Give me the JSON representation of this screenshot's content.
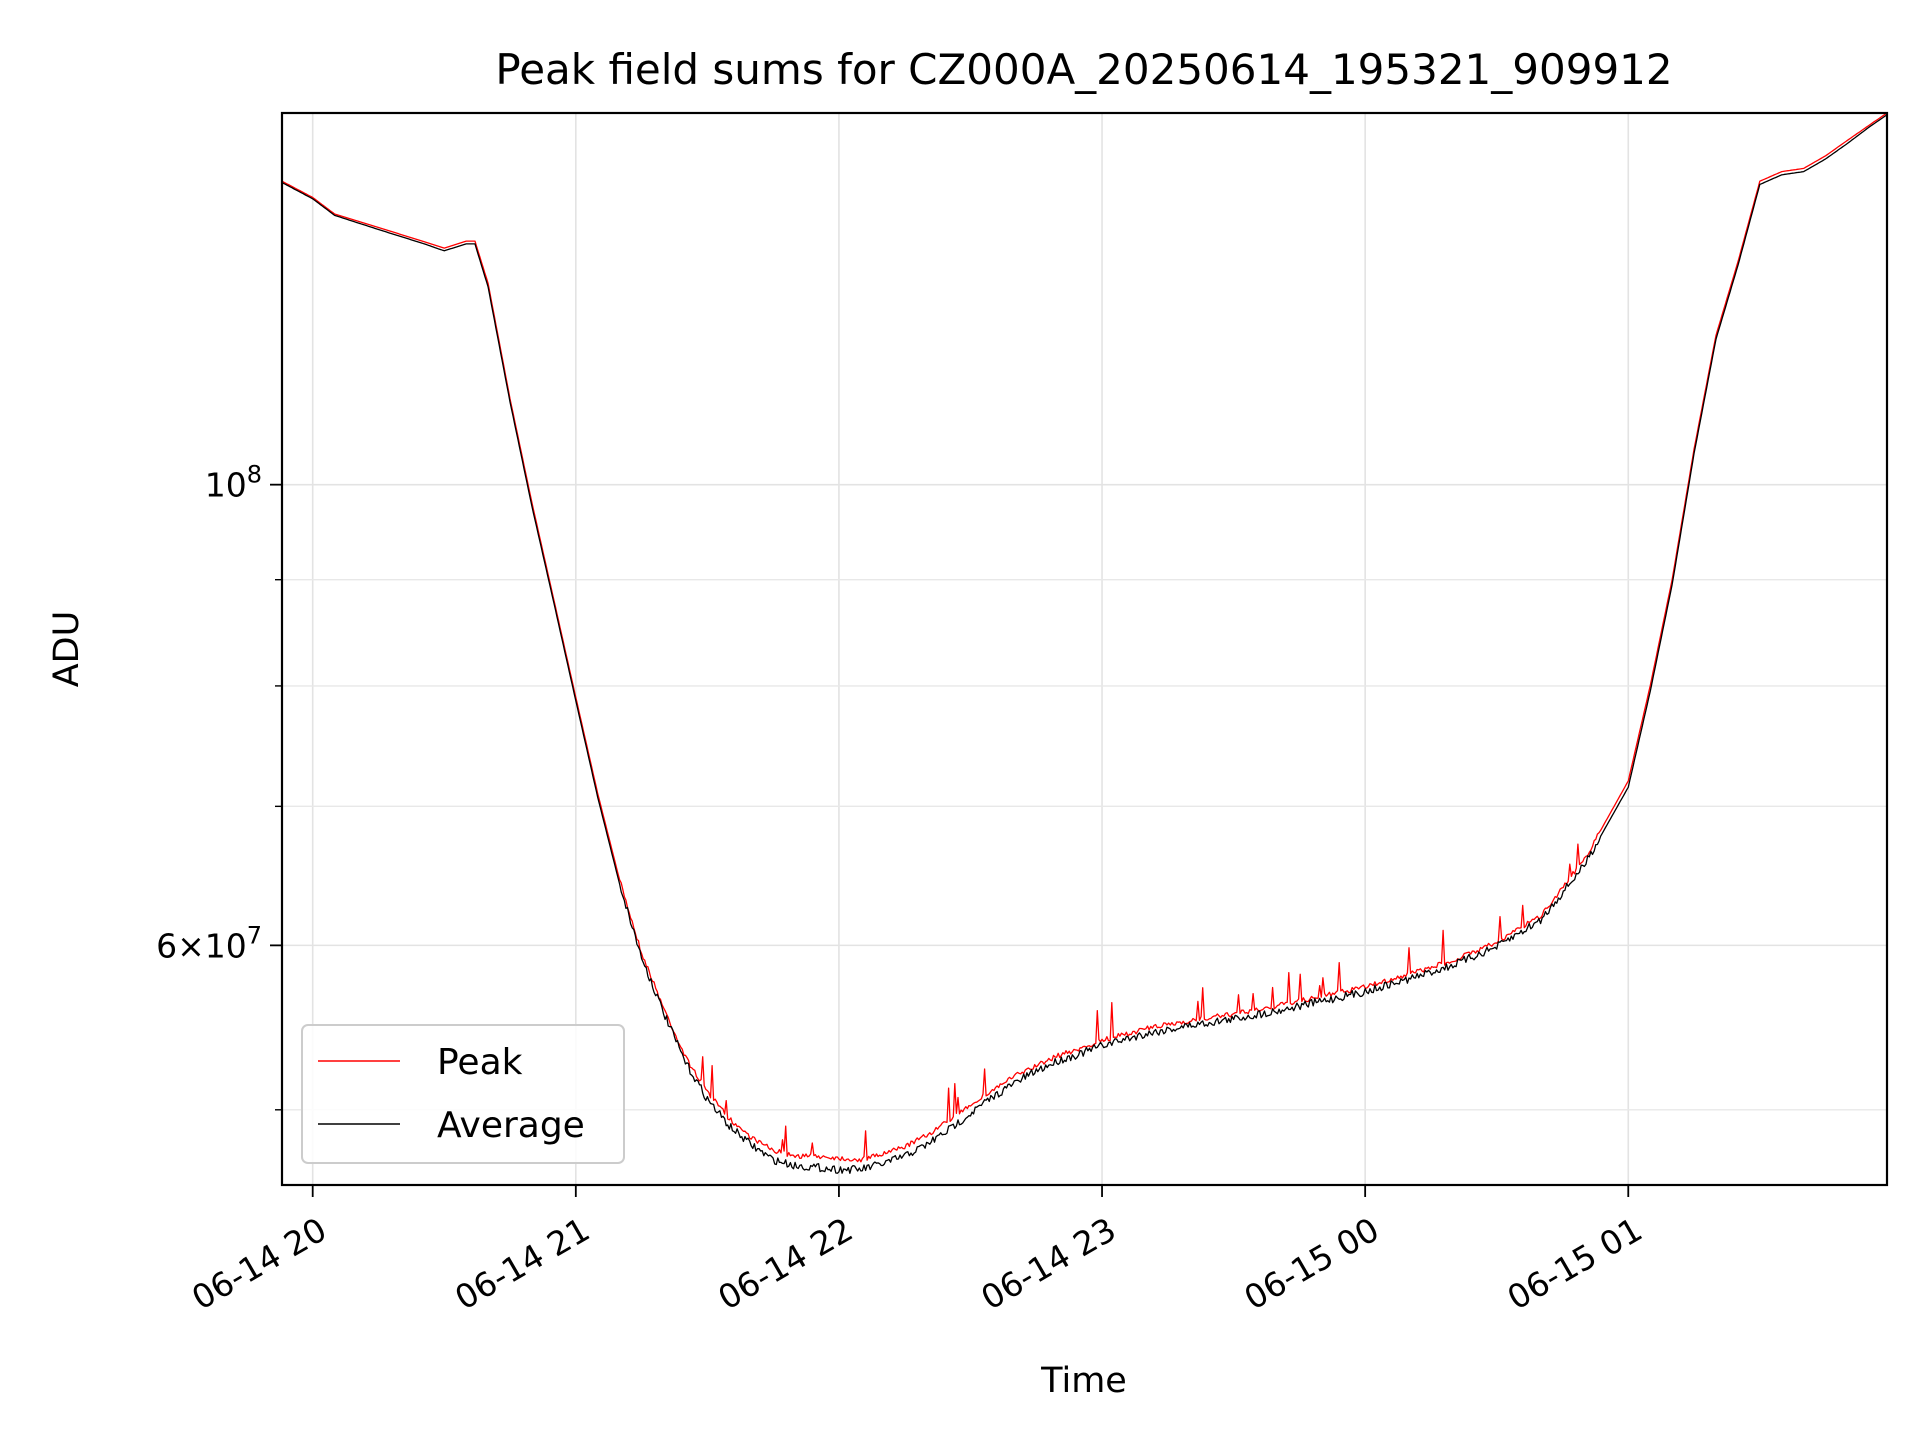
{
  "chart_data": {
    "type": "line",
    "title": "Peak field sums for CZ000A_20250614_195321_909912",
    "xlabel": "Time",
    "ylabel": "ADU",
    "y_scale": "log",
    "xlim": [
      "2025-06-14 19:53",
      "2025-06-15 01:59"
    ],
    "ylim": [
      46000000,
      151000000
    ],
    "x_ticks": [
      "06-14 20",
      "06-14 21",
      "06-14 22",
      "06-14 23",
      "06-15 00",
      "06-15 01"
    ],
    "x_tick_times": [
      "2025-06-14 20:00",
      "2025-06-14 21:00",
      "2025-06-14 22:00",
      "2025-06-14 23:00",
      "2025-06-15 00:00",
      "2025-06-15 01:00"
    ],
    "y_major_ticks": [
      {
        "value": 100000000,
        "base": "10",
        "exp": "8"
      },
      {
        "value": 60000000,
        "coef": "6",
        "base": "10",
        "exp": "7"
      }
    ],
    "y_minor_ticks": [
      50000000,
      70000000,
      80000000,
      90000000
    ],
    "grid": true,
    "legend_position": "lower-left",
    "series": [
      {
        "name": "Peak",
        "color": "#ff0000",
        "x": [
          "2025-06-14 19:53",
          "2025-06-14 20:00",
          "2025-06-14 20:05",
          "2025-06-14 20:15",
          "2025-06-14 20:25",
          "2025-06-14 20:30",
          "2025-06-14 20:35",
          "2025-06-14 20:37",
          "2025-06-14 20:40",
          "2025-06-14 20:45",
          "2025-06-14 20:50",
          "2025-06-14 20:55",
          "2025-06-14 21:00",
          "2025-06-14 21:05",
          "2025-06-14 21:10",
          "2025-06-14 21:15",
          "2025-06-14 21:20",
          "2025-06-14 21:25",
          "2025-06-14 21:30",
          "2025-06-14 21:35",
          "2025-06-14 21:40",
          "2025-06-14 21:45",
          "2025-06-14 21:50",
          "2025-06-14 21:55",
          "2025-06-14 22:00",
          "2025-06-14 22:05",
          "2025-06-14 22:10",
          "2025-06-14 22:15",
          "2025-06-14 22:20",
          "2025-06-14 22:25",
          "2025-06-14 22:30",
          "2025-06-14 22:35",
          "2025-06-14 22:40",
          "2025-06-14 22:45",
          "2025-06-14 22:50",
          "2025-06-14 22:55",
          "2025-06-14 23:00",
          "2025-06-14 23:10",
          "2025-06-14 23:20",
          "2025-06-14 23:30",
          "2025-06-14 23:40",
          "2025-06-14 23:50",
          "2025-06-15 00:00",
          "2025-06-15 00:10",
          "2025-06-15 00:20",
          "2025-06-15 00:30",
          "2025-06-15 00:40",
          "2025-06-15 00:50",
          "2025-06-15 01:00",
          "2025-06-15 01:05",
          "2025-06-15 01:10",
          "2025-06-15 01:15",
          "2025-06-15 01:20",
          "2025-06-15 01:25",
          "2025-06-15 01:30",
          "2025-06-15 01:35",
          "2025-06-15 01:40",
          "2025-06-15 01:45",
          "2025-06-15 01:50",
          "2025-06-15 01:55",
          "2025-06-15 01:59"
        ],
        "values": [
          140000000,
          137500000,
          135000000,
          133000000,
          131000000,
          130000000,
          131000000,
          131000000,
          125000000,
          110000000,
          98000000,
          88000000,
          79000000,
          71000000,
          64500000,
          59500000,
          56000000,
          53000000,
          51000000,
          49500000,
          48500000,
          47800000,
          47500000,
          47500000,
          47400000,
          47300000,
          47600000,
          48000000,
          48600000,
          49400000,
          50300000,
          51100000,
          51900000,
          52500000,
          53100000,
          53500000,
          54000000,
          54700000,
          55200000,
          55600000,
          56100000,
          56700000,
          57300000,
          58100000,
          59000000,
          60200000,
          62000000,
          66000000,
          72000000,
          80000000,
          90000000,
          104000000,
          118000000,
          128000000,
          140000000,
          141500000,
          142000000,
          144000000,
          146500000,
          149000000,
          151000000
        ]
      },
      {
        "name": "Average",
        "color": "#000000",
        "x": [
          "2025-06-14 19:53",
          "2025-06-14 20:00",
          "2025-06-14 20:05",
          "2025-06-14 20:15",
          "2025-06-14 20:25",
          "2025-06-14 20:30",
          "2025-06-14 20:35",
          "2025-06-14 20:37",
          "2025-06-14 20:40",
          "2025-06-14 20:45",
          "2025-06-14 20:50",
          "2025-06-14 20:55",
          "2025-06-14 21:00",
          "2025-06-14 21:05",
          "2025-06-14 21:10",
          "2025-06-14 21:15",
          "2025-06-14 21:20",
          "2025-06-14 21:25",
          "2025-06-14 21:30",
          "2025-06-14 21:35",
          "2025-06-14 21:40",
          "2025-06-14 21:45",
          "2025-06-14 21:50",
          "2025-06-14 21:55",
          "2025-06-14 22:00",
          "2025-06-14 22:05",
          "2025-06-14 22:10",
          "2025-06-14 22:15",
          "2025-06-14 22:20",
          "2025-06-14 22:25",
          "2025-06-14 22:30",
          "2025-06-14 22:35",
          "2025-06-14 22:40",
          "2025-06-14 22:45",
          "2025-06-14 22:50",
          "2025-06-14 22:55",
          "2025-06-14 23:00",
          "2025-06-14 23:10",
          "2025-06-14 23:20",
          "2025-06-14 23:30",
          "2025-06-14 23:40",
          "2025-06-14 23:50",
          "2025-06-15 00:00",
          "2025-06-15 00:10",
          "2025-06-15 00:20",
          "2025-06-15 00:30",
          "2025-06-15 00:40",
          "2025-06-15 00:50",
          "2025-06-15 01:00",
          "2025-06-15 01:05",
          "2025-06-15 01:10",
          "2025-06-15 01:15",
          "2025-06-15 01:20",
          "2025-06-15 01:25",
          "2025-06-15 01:30",
          "2025-06-15 01:35",
          "2025-06-15 01:40",
          "2025-06-15 01:45",
          "2025-06-15 01:50",
          "2025-06-15 01:55",
          "2025-06-15 01:59"
        ],
        "values": [
          139800000,
          137300000,
          134800000,
          132700000,
          130700000,
          129600000,
          130600000,
          130600000,
          124500000,
          109600000,
          97600000,
          87700000,
          78700000,
          70700000,
          64200000,
          59200000,
          55700000,
          52700000,
          50600000,
          49100000,
          48100000,
          47300000,
          47000000,
          46900000,
          46800000,
          46800000,
          47100000,
          47500000,
          48100000,
          48900000,
          49800000,
          50700000,
          51500000,
          52200000,
          52800000,
          53200000,
          53700000,
          54400000,
          54900000,
          55300000,
          55800000,
          56400000,
          57000000,
          57800000,
          58700000,
          59900000,
          61700000,
          65600000,
          71500000,
          79500000,
          89500000,
          103500000,
          117500000,
          127500000,
          139500000,
          141000000,
          141500000,
          143500000,
          146000000,
          148700000,
          150700000
        ]
      }
    ]
  }
}
